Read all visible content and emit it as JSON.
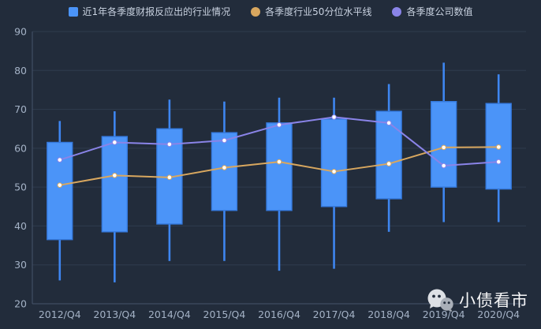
{
  "legend": {
    "items": [
      {
        "label": "近1年各季度财报反应出的行业情况",
        "marker": "square",
        "color": "#4b94f8"
      },
      {
        "label": "各季度行业50分位水平线",
        "marker": "circle",
        "color": "#d8a75f"
      },
      {
        "label": "各季度公司数值",
        "marker": "circle",
        "color": "#8a84e8"
      }
    ]
  },
  "watermark": {
    "icon": "wechat-icon",
    "text": "小债看市"
  },
  "colors": {
    "background": "#222c3b",
    "grid_line": "#2f3b4e",
    "axis_line": "#46536b",
    "axis_label": "#a4b2c6",
    "legend_text": "#c9d2e0",
    "box_fill": "#4b94f8",
    "box_border": "#3579dd",
    "whisker": "#3e86f0",
    "median_line": "#d8a75f",
    "company_line": "#8a84e8",
    "marker_fill": "#ffffff"
  },
  "chart_data": {
    "type": "boxplot+line",
    "title": "",
    "xlabel": "",
    "ylabel": "",
    "categories": [
      "2012/Q4",
      "2013/Q4",
      "2014/Q4",
      "2015/Q4",
      "2016/Q4",
      "2017/Q4",
      "2018/Q4",
      "2019/Q4",
      "2020/Q4"
    ],
    "ylim": [
      20,
      90
    ],
    "yticks": [
      20,
      30,
      40,
      50,
      60,
      70,
      80,
      90
    ],
    "grid": true,
    "legend_position": "top",
    "series": [
      {
        "name": "近1年各季度财报反应出的行业情况",
        "type": "boxplot",
        "color": "#4b94f8",
        "note": "values are [low, boxBottom, boxTop, high]",
        "values": [
          [
            26,
            36.5,
            61.5,
            67
          ],
          [
            25.5,
            38.5,
            63,
            69.5
          ],
          [
            31,
            40.5,
            65,
            72.5
          ],
          [
            31,
            44,
            64,
            72
          ],
          [
            28.5,
            44,
            66.5,
            73
          ],
          [
            29,
            45,
            67.5,
            73
          ],
          [
            38.5,
            47,
            69.5,
            76.5
          ],
          [
            41,
            50,
            72,
            82
          ],
          [
            41,
            49.5,
            71.5,
            79
          ]
        ]
      },
      {
        "name": "各季度行业50分位水平线",
        "type": "line",
        "color": "#d8a75f",
        "values": [
          50.5,
          53,
          52.5,
          55,
          56.5,
          54,
          56,
          60.2,
          60.3
        ]
      },
      {
        "name": "各季度公司数值",
        "type": "line",
        "color": "#8a84e8",
        "values": [
          57,
          61.5,
          61,
          62,
          66,
          68,
          66.5,
          55.5,
          56.5
        ]
      }
    ]
  }
}
